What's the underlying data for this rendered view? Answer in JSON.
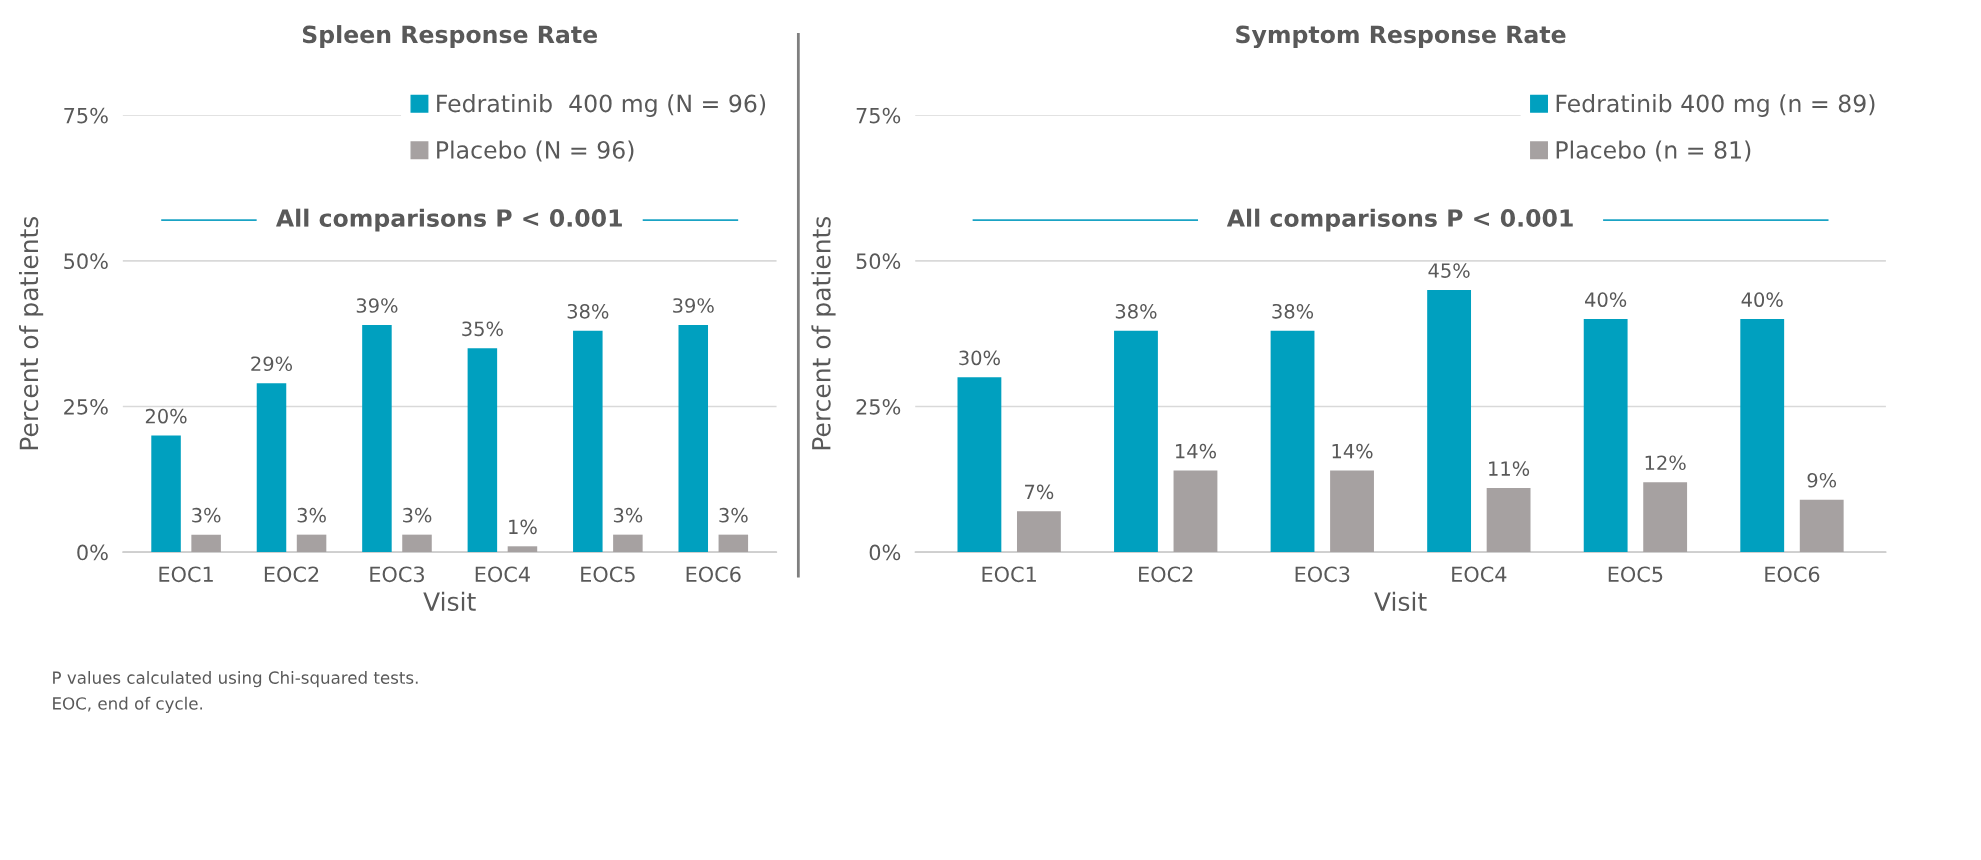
{
  "chart_data": [
    {
      "type": "bar",
      "title": "Spleen Response Rate",
      "xlabel": "Visit",
      "ylabel": "Percent of patients",
      "categories": [
        "EOC1",
        "EOC2",
        "EOC3",
        "EOC4",
        "EOC5",
        "EOC6"
      ],
      "series": [
        {
          "name": "Fedratinib  400 mg (N = 96)",
          "color": "#00a0bf",
          "values": [
            20,
            29,
            39,
            35,
            38,
            39
          ],
          "value_labels": [
            "20%",
            "29%",
            "39%",
            "35%",
            "38%",
            "39%"
          ]
        },
        {
          "name": "Placebo (N = 96)",
          "color": "#a6a1a1",
          "values": [
            3,
            3,
            3,
            1,
            3,
            3
          ],
          "value_labels": [
            "3%",
            "3%",
            "3%",
            "1%",
            "3%",
            "3%"
          ]
        }
      ],
      "ylim": [
        0,
        75
      ],
      "yticks": [
        {
          "value": 0,
          "label": "0%"
        },
        {
          "value": 25,
          "label": "25%"
        },
        {
          "value": 50,
          "label": "50%"
        },
        {
          "value": 75,
          "label": "75%"
        }
      ],
      "grid": "y",
      "legend": "top right",
      "annotations": [
        "All comparisons P < 0.001",
        "P values calculated using Chi-squared tests.",
        "EOC, end of cycle."
      ]
    },
    {
      "type": "bar",
      "title": "Symptom Response Rate",
      "xlabel": "Visit",
      "ylabel": "Percent of patients",
      "categories": [
        "EOC1",
        "EOC2",
        "EOC3",
        "EOC4",
        "EOC5",
        "EOC6"
      ],
      "series": [
        {
          "name": "Fedratinib 400 mg (n = 89)",
          "color": "#00a0bf",
          "values": [
            30,
            38,
            38,
            45,
            40,
            40
          ],
          "value_labels": [
            "30%",
            "38%",
            "38%",
            "45%",
            "40%",
            "40%"
          ]
        },
        {
          "name": "Placebo (n = 81)",
          "color": "#a6a1a1",
          "values": [
            7,
            14,
            14,
            11,
            12,
            9
          ],
          "value_labels": [
            "7%",
            "14%",
            "14%",
            "11%",
            "12%",
            "9%"
          ]
        }
      ],
      "ylim": [
        0,
        75
      ],
      "yticks": [
        {
          "value": 0,
          "label": "0%"
        },
        {
          "value": 25,
          "label": "25%"
        },
        {
          "value": 50,
          "label": "50%"
        },
        {
          "value": 75,
          "label": "75%"
        }
      ],
      "grid": "y",
      "legend": "top right",
      "annotations": [
        "All comparisons P < 0.001"
      ]
    }
  ]
}
